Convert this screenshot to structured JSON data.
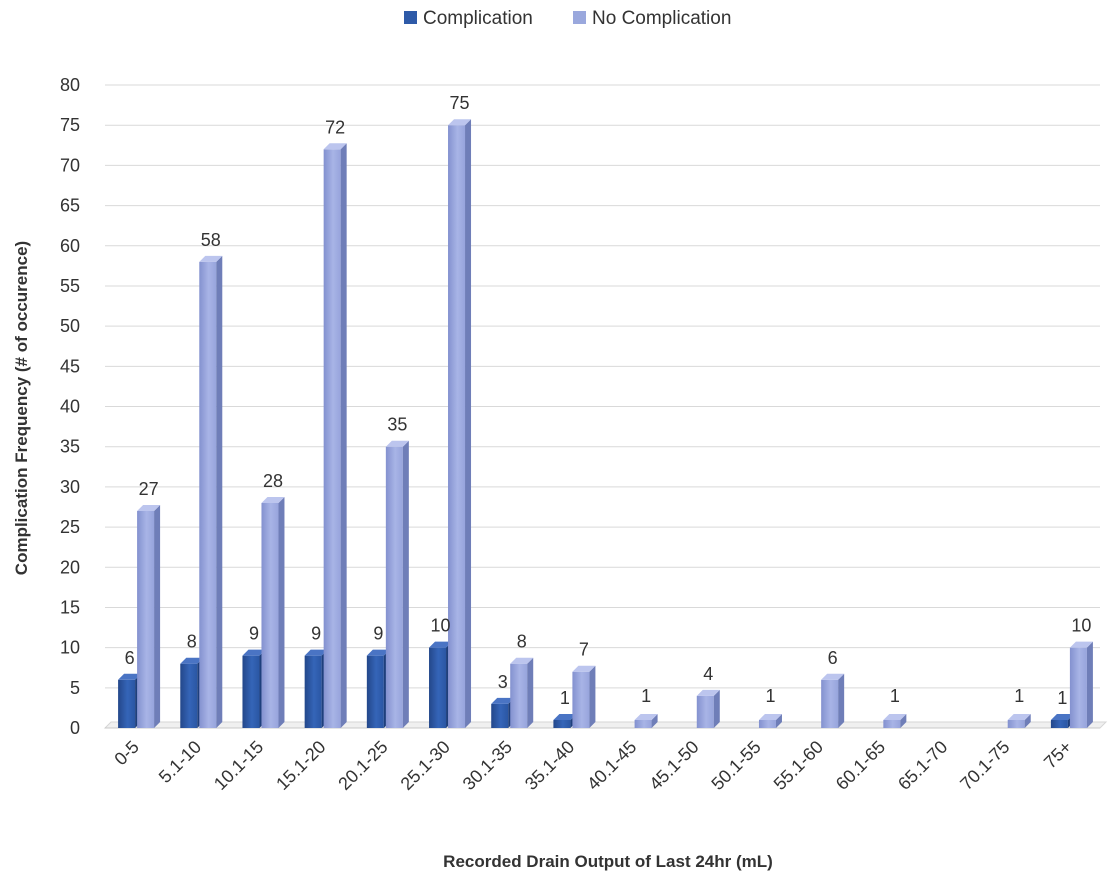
{
  "chart_data": {
    "type": "bar",
    "style": "3d-clustered-column",
    "title": "",
    "xlabel": "Recorded Drain Output of Last 24hr (mL)",
    "ylabel": "Complication Frequency (# of occurence)",
    "ylim": [
      0,
      80
    ],
    "yticks": [
      0,
      5,
      10,
      15,
      20,
      25,
      30,
      35,
      40,
      45,
      50,
      55,
      60,
      65,
      70,
      75,
      80
    ],
    "grid": true,
    "legend_position": "top",
    "categories": [
      "0-5",
      "5.1-10",
      "10.1-15",
      "15.1-20",
      "20.1-25",
      "25.1-30",
      "30.1-35",
      "35.1-40",
      "40.1-45",
      "45.1-50",
      "50.1-55",
      "55.1-60",
      "60.1-65",
      "65.1-70",
      "70.1-75",
      "75+"
    ],
    "series": [
      {
        "name": "Complication",
        "color": "#2e5aa8",
        "values": [
          6,
          8,
          9,
          9,
          9,
          10,
          3,
          1,
          null,
          null,
          null,
          null,
          null,
          null,
          null,
          1
        ]
      },
      {
        "name": "No Complication",
        "color": "#9aa8dd",
        "values": [
          27,
          58,
          28,
          72,
          35,
          75,
          8,
          7,
          1,
          4,
          1,
          6,
          1,
          null,
          1,
          10
        ]
      }
    ]
  }
}
